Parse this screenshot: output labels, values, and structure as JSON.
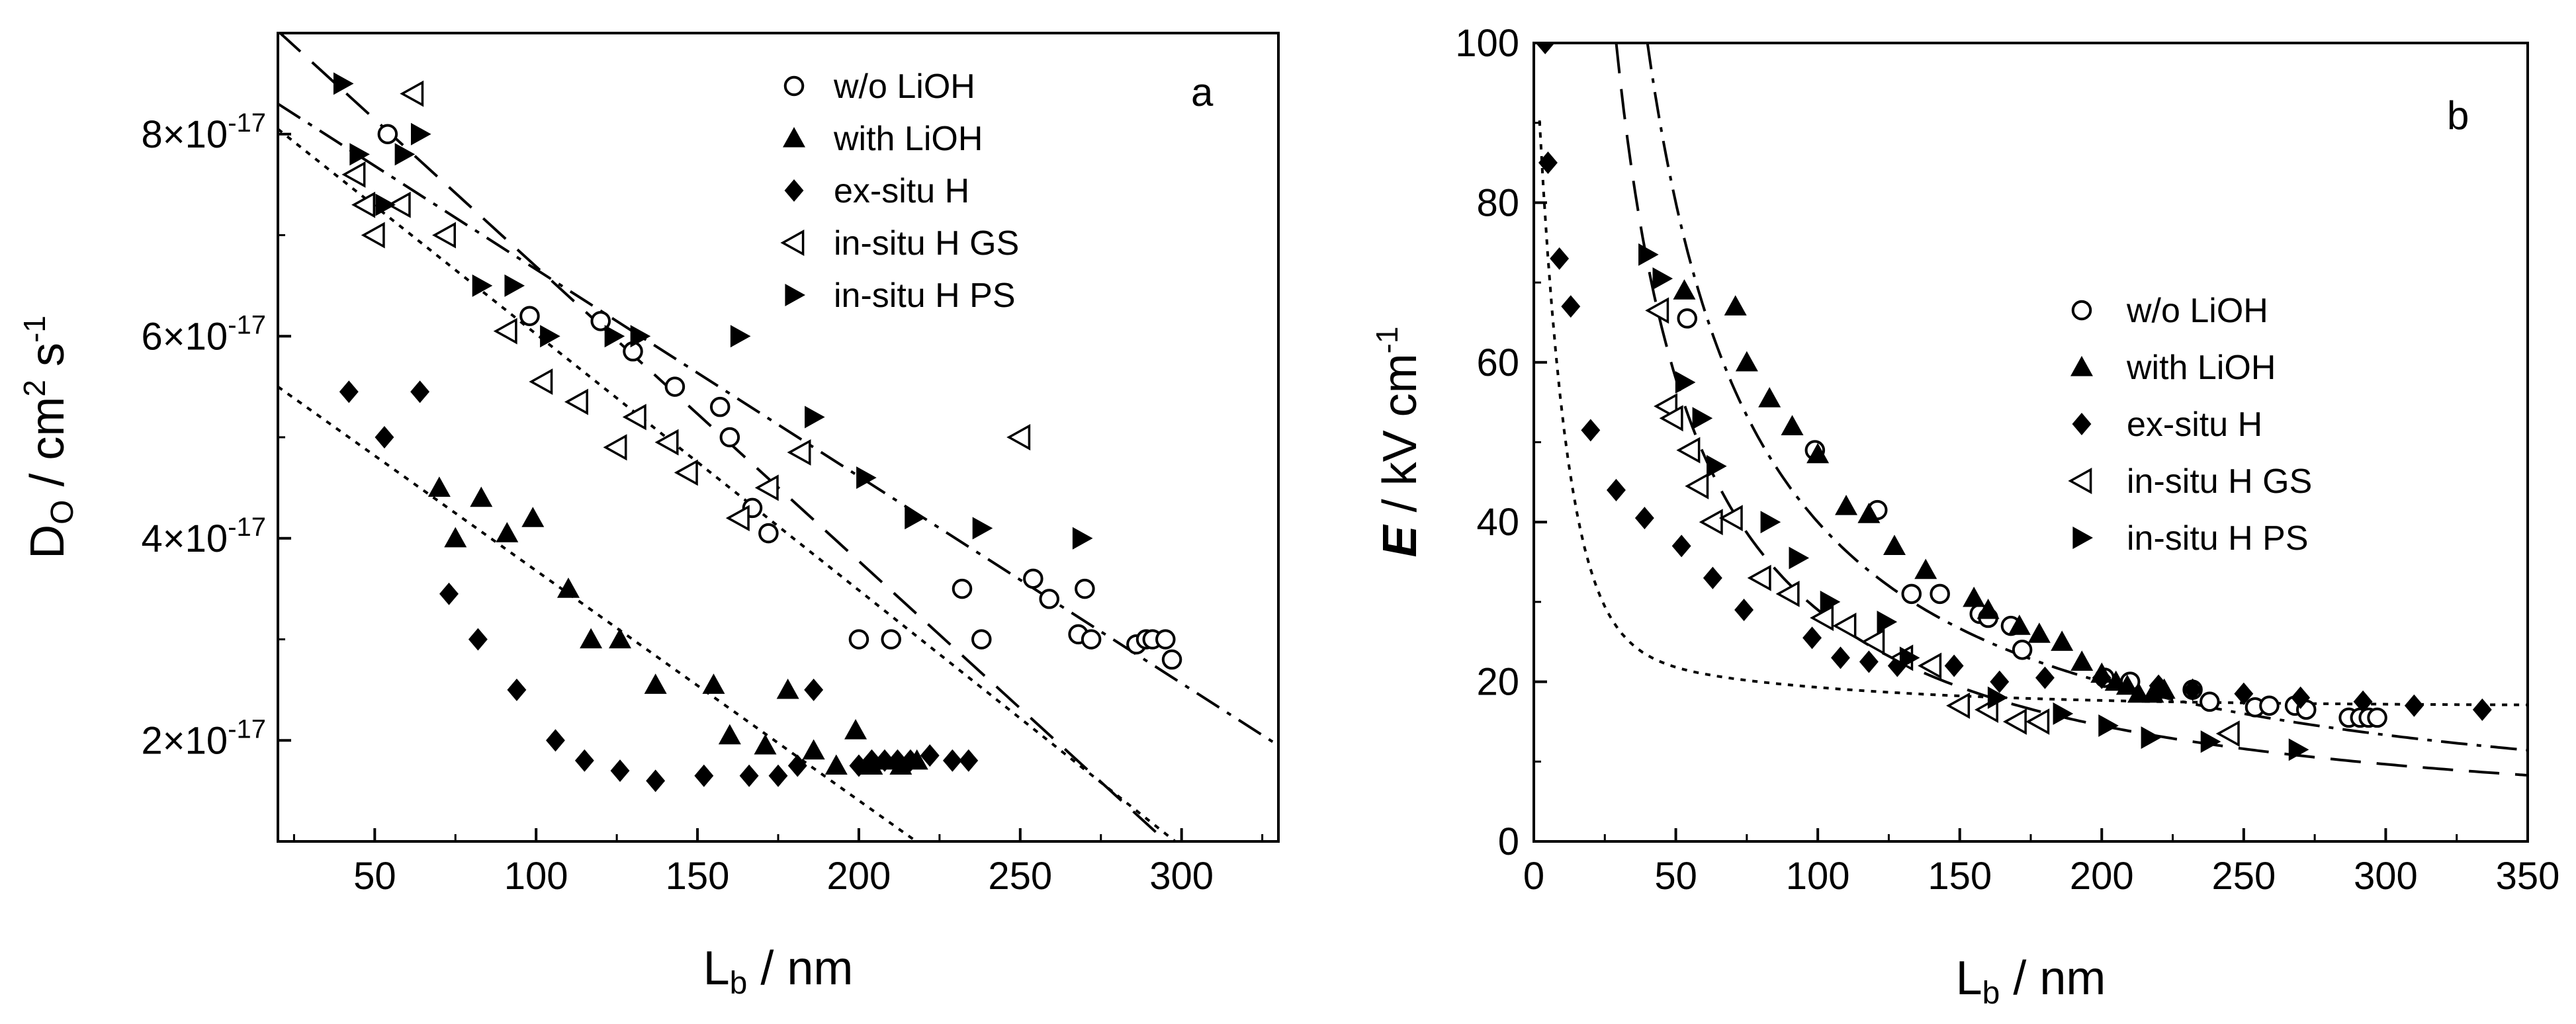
{
  "chart_data": [
    {
      "panel": "a",
      "type": "scatter",
      "ylabel": {
        "main": "D",
        "sub": "O",
        "unit": " / cm",
        "sup1": "2",
        "unit2": " s",
        "sup2": "-1"
      },
      "xlabel": {
        "main": "L",
        "sub": "b",
        "unit": " / nm"
      },
      "xlim": [
        20,
        330
      ],
      "ylim": [
        1e-17,
        9e-17
      ],
      "xticks": [
        50,
        100,
        150,
        200,
        250,
        300
      ],
      "yticks": [
        {
          "value": 2e-17,
          "mantissa": "2×10",
          "exp": "-17"
        },
        {
          "value": 4e-17,
          "mantissa": "4×10",
          "exp": "-17"
        },
        {
          "value": 6e-17,
          "mantissa": "6×10",
          "exp": "-17"
        },
        {
          "value": 8e-17,
          "mantissa": "8×10",
          "exp": "-17"
        }
      ],
      "legend_position": "top-right",
      "series": [
        {
          "name": "w/o LiOH",
          "marker": "circle-open",
          "points": [
            [
              54,
              8e-17
            ],
            [
              98,
              6.2e-17
            ],
            [
              120,
              6.15e-17
            ],
            [
              130,
              5.85e-17
            ],
            [
              143,
              5.5e-17
            ],
            [
              157,
              5.3e-17
            ],
            [
              160,
              5e-17
            ],
            [
              167,
              4.3e-17
            ],
            [
              172,
              4.05e-17
            ],
            [
              200,
              3e-17
            ],
            [
              210,
              3e-17
            ],
            [
              232,
              3.5e-17
            ],
            [
              238,
              3e-17
            ],
            [
              254,
              3.6e-17
            ],
            [
              259,
              3.4e-17
            ],
            [
              268,
              3.05e-17
            ],
            [
              270,
              3.5e-17
            ],
            [
              272,
              3e-17
            ],
            [
              286,
              2.95e-17
            ],
            [
              289,
              3e-17
            ],
            [
              291,
              3e-17
            ],
            [
              295,
              3e-17
            ],
            [
              297,
              2.8e-17
            ]
          ]
        },
        {
          "name": "with LiOH",
          "marker": "triangle-up",
          "points": [
            [
              70,
              4.5e-17
            ],
            [
              75,
              4e-17
            ],
            [
              83,
              4.4e-17
            ],
            [
              91,
              4.05e-17
            ],
            [
              99,
              4.2e-17
            ],
            [
              110,
              3.5e-17
            ],
            [
              117,
              3e-17
            ],
            [
              126,
              3e-17
            ],
            [
              137,
              2.55e-17
            ],
            [
              155,
              2.55e-17
            ],
            [
              160,
              2.05e-17
            ],
            [
              171,
              1.95e-17
            ],
            [
              178,
              2.5e-17
            ],
            [
              186,
              1.9e-17
            ],
            [
              193,
              1.75e-17
            ],
            [
              199,
              2.1e-17
            ],
            [
              204,
              1.75e-17
            ],
            [
              208,
              1.8e-17
            ],
            [
              213,
              1.75e-17
            ],
            [
              218,
              1.8e-17
            ]
          ]
        },
        {
          "name": "ex-situ H",
          "marker": "diamond",
          "points": [
            [
              42,
              5.45e-17
            ],
            [
              53,
              5e-17
            ],
            [
              64,
              5.45e-17
            ],
            [
              73,
              3.45e-17
            ],
            [
              82,
              3e-17
            ],
            [
              94,
              2.5e-17
            ],
            [
              106,
              2e-17
            ],
            [
              115,
              1.8e-17
            ],
            [
              126,
              1.7e-17
            ],
            [
              137,
              1.6e-17
            ],
            [
              152,
              1.65e-17
            ],
            [
              166,
              1.65e-17
            ],
            [
              175,
              1.65e-17
            ],
            [
              181,
              1.75e-17
            ],
            [
              186,
              2.5e-17
            ],
            [
              200,
              1.75e-17
            ],
            [
              204,
              1.8e-17
            ],
            [
              208,
              1.8e-17
            ],
            [
              212,
              1.8e-17
            ],
            [
              216,
              1.8e-17
            ],
            [
              222,
              1.85e-17
            ],
            [
              229,
              1.8e-17
            ],
            [
              234,
              1.8e-17
            ]
          ]
        },
        {
          "name": "in-situ H GS",
          "marker": "triangle-left-open",
          "points": [
            [
              62,
              8.4e-17
            ],
            [
              44,
              7.6e-17
            ],
            [
              47,
              7.3e-17
            ],
            [
              50,
              7e-17
            ],
            [
              58,
              7.3e-17
            ],
            [
              72,
              7e-17
            ],
            [
              91,
              6.05e-17
            ],
            [
              102,
              5.55e-17
            ],
            [
              113,
              5.35e-17
            ],
            [
              125,
              4.9e-17
            ],
            [
              131,
              5.2e-17
            ],
            [
              141,
              4.95e-17
            ],
            [
              147,
              4.65e-17
            ],
            [
              163,
              4.2e-17
            ],
            [
              172,
              4.5e-17
            ],
            [
              182,
              4.85e-17
            ],
            [
              250,
              5e-17
            ]
          ]
        },
        {
          "name": "in-situ H PS",
          "marker": "triangle-right",
          "points": [
            [
              40,
              8.5e-17
            ],
            [
              45,
              7.8e-17
            ],
            [
              53,
              7.3e-17
            ],
            [
              59,
              7.8e-17
            ],
            [
              64,
              8e-17
            ],
            [
              83,
              6.5e-17
            ],
            [
              93,
              6.5e-17
            ],
            [
              104,
              6e-17
            ],
            [
              124,
              6e-17
            ],
            [
              132,
              6e-17
            ],
            [
              163,
              6e-17
            ],
            [
              186,
              5.2e-17
            ],
            [
              202,
              4.6e-17
            ],
            [
              217,
              4.2e-17
            ],
            [
              238,
              4.1e-17
            ],
            [
              269,
              4e-17
            ]
          ]
        }
      ],
      "fit_lines": [
        {
          "style": "long-dash",
          "x": [
            20,
            300
          ],
          "y": [
            9.02e-17,
            8.6e-18
          ]
        },
        {
          "style": "dash-dot",
          "x": [
            20,
            330
          ],
          "y": [
            8.3e-17,
            1.95e-17
          ]
        },
        {
          "style": "dotted",
          "x": [
            20,
            300
          ],
          "y": [
            8.05e-17,
            9.5e-18
          ]
        },
        {
          "style": "dotted",
          "x": [
            20,
            220
          ],
          "y": [
            5.5e-17,
            9.5e-18
          ]
        }
      ],
      "panel_label": "a"
    },
    {
      "panel": "b",
      "type": "scatter",
      "ylabel": {
        "main": "E",
        "unit": " / kV cm",
        "sup": "-1"
      },
      "xlabel": {
        "main": "L",
        "sub": "b",
        "unit": " / nm"
      },
      "xlim": [
        0,
        350
      ],
      "ylim": [
        0,
        100
      ],
      "xticks": [
        0,
        50,
        100,
        150,
        200,
        250,
        300,
        350
      ],
      "yticks": [
        0,
        20,
        40,
        60,
        80,
        100
      ],
      "legend_position": "center-right",
      "series": [
        {
          "name": "w/o LiOH",
          "marker": "circle-open",
          "points": [
            [
              54,
              65.5
            ],
            [
              99,
              49
            ],
            [
              121,
              41.5
            ],
            [
              133,
              31
            ],
            [
              143,
              31
            ],
            [
              157,
              28.5
            ],
            [
              160,
              28
            ],
            [
              168,
              27
            ],
            [
              172,
              24
            ],
            [
              201,
              20.5
            ],
            [
              210,
              20
            ],
            [
              232,
              19
            ],
            [
              238,
              17.5
            ],
            [
              254,
              16.8
            ],
            [
              259,
              17
            ],
            [
              268,
              17
            ],
            [
              272,
              16.5
            ],
            [
              287,
              15.5
            ],
            [
              291,
              15.5
            ],
            [
              294,
              15.5
            ],
            [
              297,
              15.5
            ]
          ]
        },
        {
          "name": "with LiOH",
          "marker": "triangle-up",
          "points": [
            [
              53,
              69
            ],
            [
              71,
              67
            ],
            [
              75,
              60
            ],
            [
              83,
              55.5
            ],
            [
              91,
              52
            ],
            [
              100,
              48.5
            ],
            [
              110,
              42
            ],
            [
              118,
              41
            ],
            [
              127,
              37
            ],
            [
              138,
              34
            ],
            [
              155,
              30.5
            ],
            [
              160,
              29
            ],
            [
              171,
              27
            ],
            [
              178,
              26
            ],
            [
              186,
              25
            ],
            [
              193,
              22.5
            ],
            [
              200,
              21
            ],
            [
              205,
              20
            ],
            [
              209,
              19.5
            ],
            [
              213,
              18.5
            ],
            [
              218,
              18.5
            ],
            [
              222,
              19
            ]
          ]
        },
        {
          "name": "ex-situ H",
          "marker": "diamond",
          "points": [
            [
              4,
              100
            ],
            [
              5,
              85
            ],
            [
              9,
              73
            ],
            [
              13,
              67
            ],
            [
              20,
              51.5
            ],
            [
              29,
              44
            ],
            [
              39,
              40.5
            ],
            [
              52,
              37
            ],
            [
              63,
              33
            ],
            [
              74,
              29
            ],
            [
              98,
              25.5
            ],
            [
              108,
              23
            ],
            [
              118,
              22.5
            ],
            [
              128,
              22
            ],
            [
              148,
              22
            ],
            [
              164,
              20
            ],
            [
              180,
              20.5
            ],
            [
              200,
              20.5
            ],
            [
              220,
              19.5
            ],
            [
              232,
              19
            ],
            [
              250,
              18.5
            ],
            [
              270,
              18
            ],
            [
              292,
              17.5
            ],
            [
              310,
              17
            ],
            [
              334,
              16.5
            ]
          ]
        },
        {
          "name": "in-situ H GS",
          "marker": "triangle-left-open",
          "points": [
            [
              44,
              66.5
            ],
            [
              47,
              54.5
            ],
            [
              49,
              53
            ],
            [
              55,
              49
            ],
            [
              58,
              44.5
            ],
            [
              63,
              40
            ],
            [
              70,
              40.5
            ],
            [
              80,
              33
            ],
            [
              90,
              31
            ],
            [
              102,
              28
            ],
            [
              110,
              27
            ],
            [
              120,
              25
            ],
            [
              130,
              23
            ],
            [
              140,
              22
            ],
            [
              150,
              17
            ],
            [
              160,
              16.5
            ],
            [
              170,
              15
            ],
            [
              178,
              15
            ],
            [
              245,
              13.5
            ]
          ]
        },
        {
          "name": "in-situ H PS",
          "marker": "triangle-right",
          "points": [
            [
              40,
              73.5
            ],
            [
              45,
              70.5
            ],
            [
              53,
              57.5
            ],
            [
              59,
              53
            ],
            [
              64,
              47
            ],
            [
              83,
              40
            ],
            [
              93,
              35.5
            ],
            [
              104,
              30
            ],
            [
              124,
              27.5
            ],
            [
              132,
              23
            ],
            [
              163,
              18
            ],
            [
              186,
              16
            ],
            [
              202,
              14.5
            ],
            [
              217,
              13
            ],
            [
              238,
              12.5
            ],
            [
              269,
              11.5
            ]
          ]
        }
      ],
      "fit_lines": [
        {
          "style": "dotted",
          "kind": "decay",
          "A": 80,
          "t": 10,
          "C": 17,
          "x_from": 2,
          "x_to": 350
        },
        {
          "style": "long-dash",
          "kind": "inverse",
          "k": 2900,
          "x_from": 29,
          "x_to": 350
        },
        {
          "style": "dash-dot",
          "kind": "inverse",
          "k": 4000,
          "x_from": 40,
          "x_to": 350
        }
      ],
      "panel_label": "b"
    }
  ]
}
